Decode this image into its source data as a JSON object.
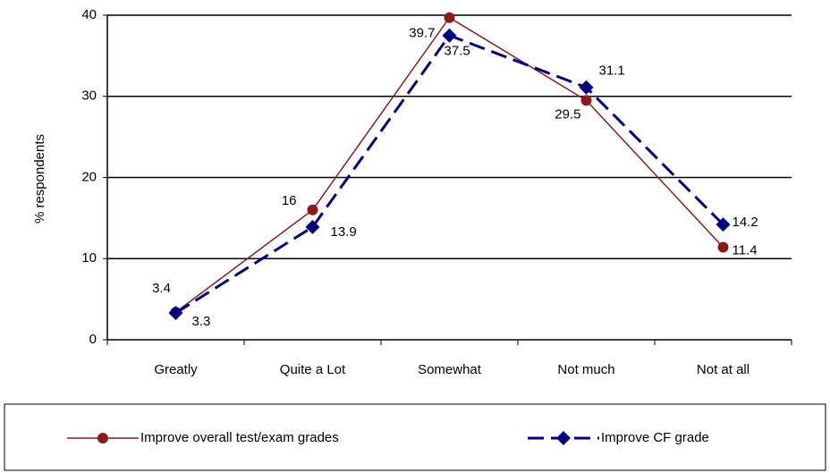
{
  "chart_data": {
    "type": "line",
    "y_label": "% respondents",
    "categories": [
      "Greatly",
      "Quite a Lot",
      "Somewhat",
      "Not much",
      "Not at all"
    ],
    "series": [
      {
        "name": "Improve overall test/exam grades",
        "color": "#8b1a1a",
        "values": [
          3.4,
          16,
          39.7,
          29.5,
          11.4
        ]
      },
      {
        "name": "Improve CF grade",
        "color": "#000080",
        "values": [
          3.3,
          13.9,
          37.5,
          31.1,
          14.2
        ]
      }
    ],
    "ylim": [
      0,
      40
    ],
    "yticks": [
      0,
      10,
      20,
      30,
      40
    ],
    "grid": true,
    "legend": "bottom"
  }
}
